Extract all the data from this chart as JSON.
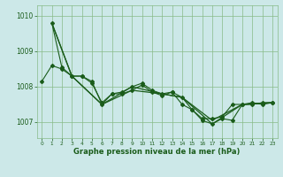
{
  "title": "Graphe pression niveau de la mer (hPa)",
  "bg_color": "#cce8e8",
  "grid_color": "#88bb88",
  "line_color": "#1a5c1a",
  "xlim": [
    -0.5,
    23.5
  ],
  "ylim": [
    1006.55,
    1010.3
  ],
  "yticks": [
    1007,
    1008,
    1009,
    1010
  ],
  "xticks": [
    0,
    1,
    2,
    3,
    4,
    5,
    6,
    7,
    8,
    9,
    10,
    11,
    12,
    13,
    14,
    15,
    16,
    17,
    18,
    19,
    20,
    21,
    22,
    23
  ],
  "line1_x": [
    1,
    2,
    3,
    4,
    5,
    6,
    7,
    8,
    9,
    10,
    11,
    12,
    13,
    14,
    15,
    16,
    17,
    18,
    19,
    20,
    21,
    22,
    23
  ],
  "line1_y": [
    1009.8,
    1008.55,
    1008.3,
    1008.3,
    1008.15,
    1007.5,
    1007.8,
    1007.85,
    1008.0,
    1008.1,
    1007.9,
    1007.8,
    1007.85,
    1007.7,
    1007.35,
    1007.05,
    1006.95,
    1007.1,
    1007.05,
    1007.5,
    1007.55,
    1007.5,
    1007.55
  ],
  "line2_x": [
    0,
    1,
    2,
    3,
    4,
    5,
    6,
    7,
    8,
    9,
    10,
    11,
    12,
    13,
    14,
    15,
    16,
    17,
    18,
    19,
    20,
    21,
    22,
    23
  ],
  "line2_y": [
    1008.15,
    1008.6,
    1008.5,
    1008.3,
    1008.3,
    1008.1,
    1007.55,
    1007.8,
    1007.8,
    1007.9,
    1008.05,
    1007.85,
    1007.75,
    1007.85,
    1007.5,
    1007.35,
    1007.1,
    1007.1,
    1007.15,
    1007.5,
    1007.5,
    1007.5,
    1007.55,
    1007.55
  ],
  "line3_x": [
    1,
    3,
    6,
    9,
    12,
    14,
    17,
    20,
    23
  ],
  "line3_y": [
    1009.8,
    1008.3,
    1007.5,
    1008.0,
    1007.8,
    1007.7,
    1006.95,
    1007.5,
    1007.55
  ],
  "line4_x": [
    1,
    3,
    6,
    9,
    12,
    14,
    17,
    20,
    23
  ],
  "line4_y": [
    1009.8,
    1008.3,
    1007.5,
    1007.9,
    1007.8,
    1007.7,
    1007.05,
    1007.5,
    1007.55
  ]
}
